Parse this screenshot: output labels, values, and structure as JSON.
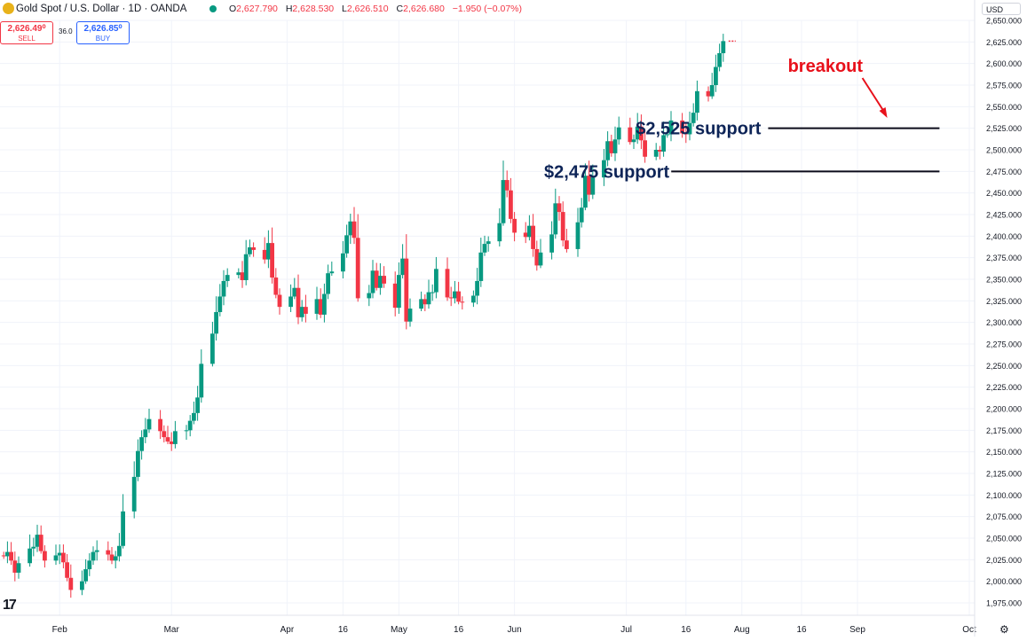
{
  "header": {
    "symbol_title": "Gold Spot / U.S. Dollar · 1D · OANDA",
    "open_label": "O",
    "open": "2,627.790",
    "high_label": "H",
    "high": "2,628.530",
    "low_label": "L",
    "low": "2,626.510",
    "close_label": "C",
    "close": "2,626.680",
    "change": "−1.950 (−0.07%)",
    "sell_price": "2,626.49⁰",
    "sell_label": "SELL",
    "spread": "36.0",
    "buy_price": "2,626.85⁰",
    "buy_label": "BUY",
    "currency": "USD",
    "platform_logo_text": "17"
  },
  "colors": {
    "up": "#089981",
    "down": "#f23645",
    "annotation": "#0d2457",
    "breakout": "#e8111b",
    "grid": "#f0f3fa"
  },
  "icons": [
    "gold-symbol-icon",
    "live-status-icon",
    "currency-dropdown-icon",
    "tradingview-logo-icon",
    "settings-gear-icon"
  ],
  "chart_data": {
    "type": "candlestick",
    "title": "Gold Spot / U.S. Dollar · 1D · OANDA",
    "ylim": [
      1960,
      2650
    ],
    "y_ticks": [
      "2,650.000",
      "2,625.000",
      "2,600.000",
      "2,575.000",
      "2,550.000",
      "2,525.000",
      "2,500.000",
      "2,475.000",
      "2,450.000",
      "2,425.000",
      "2,400.000",
      "2,375.000",
      "2,350.000",
      "2,325.000",
      "2,300.000",
      "2,275.000",
      "2,250.000",
      "2,225.000",
      "2,200.000",
      "2,175.000",
      "2,150.000",
      "2,125.000",
      "2,100.000",
      "2,075.000",
      "2,050.000",
      "2,025.000",
      "2,000.000",
      "1,975.000"
    ],
    "x_ticks": [
      "Feb",
      "Mar",
      "Apr",
      "16",
      "May",
      "16",
      "Jun",
      "Jul",
      "16",
      "Aug",
      "16",
      "Sep",
      "Oct"
    ],
    "x_tick_days": [
      36,
      66,
      97,
      112,
      127,
      143,
      158,
      188,
      204,
      219,
      235,
      250,
      280
    ],
    "grid": true,
    "closes": [
      2029,
      2034,
      2024,
      2010,
      2021,
      2038,
      2040,
      2054,
      2035,
      2024,
      2030,
      2033,
      2022,
      2004,
      1990,
      2000,
      2014,
      2024,
      2034,
      2036,
      2031,
      2024,
      2029,
      2041,
      2081,
      2121,
      2151,
      2167,
      2176,
      2188,
      2174,
      2167,
      2162,
      2159,
      2174,
      2175,
      2186,
      2195,
      2213,
      2252,
      2287,
      2312,
      2330,
      2348,
      2355,
      2358,
      2349,
      2379,
      2387,
      2384,
      2373,
      2392,
      2352,
      2332,
      2318,
      2330,
      2340,
      2306,
      2318,
      2310,
      2327,
      2309,
      2333,
      2357,
      2359,
      2380,
      2401,
      2417,
      2398,
      2328,
      2334,
      2360,
      2340,
      2354,
      2345,
      2317,
      2355,
      2374,
      2301,
      2316,
      2327,
      2321,
      2335,
      2335,
      2362,
      2329,
      2328,
      2336,
      2324,
      2323,
      2331,
      2348,
      2381,
      2391,
      2394,
      2415,
      2465,
      2453,
      2420,
      2404,
      2399,
      2412,
      2385,
      2366,
      2381,
      2402,
      2438,
      2428,
      2395,
      2385,
      2416,
      2433,
      2470,
      2448,
      2468,
      2488,
      2510,
      2496,
      2512,
      2526,
      2509,
      2512,
      2527,
      2511,
      2492,
      2500,
      2498,
      2517,
      2518,
      2534,
      2519,
      2518,
      2531,
      2543,
      2568,
      2562,
      2575,
      2596,
      2612,
      2626
    ],
    "annotations": [
      {
        "label": "$2,525 support",
        "y": 2525,
        "x_start_day": 227,
        "x_end_day": 272
      },
      {
        "label": "$2,475 support",
        "y": 2475,
        "x_start_day": 201,
        "x_end_day": 272
      },
      {
        "label": "breakout",
        "arrow_to_day": 258,
        "arrow_to_y": 2537
      }
    ]
  }
}
